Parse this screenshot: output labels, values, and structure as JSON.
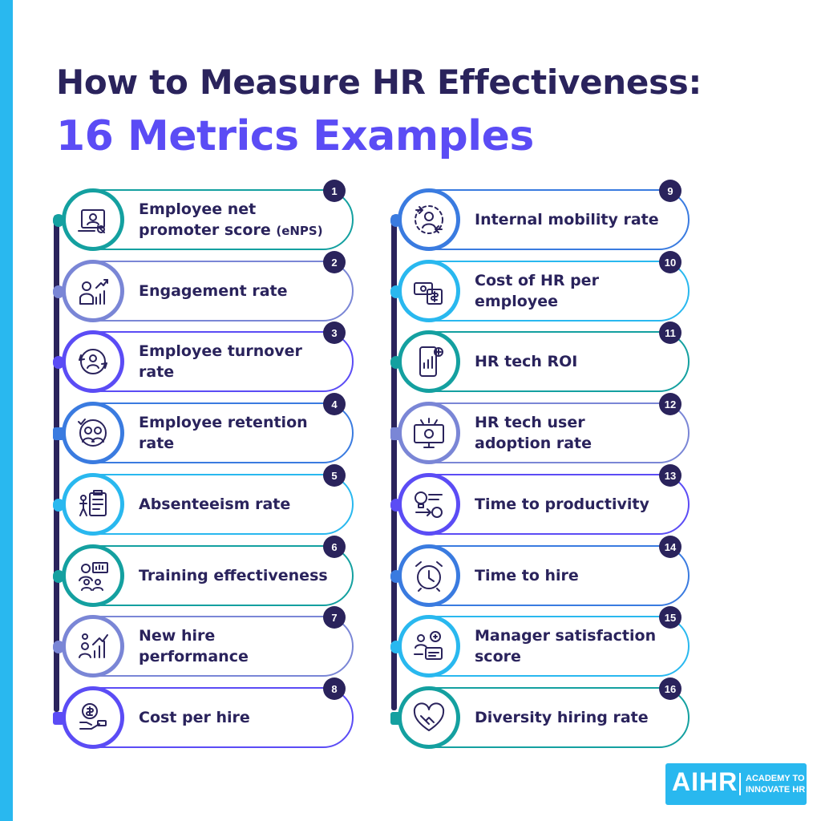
{
  "title": {
    "line1": "How to Measure HR Effectiveness:",
    "line2": "16 Metrics Examples"
  },
  "colors": {
    "navy": "#2a235c",
    "purple": "#5b4cf5",
    "cyan": "#29b8ef",
    "teal": "#14a0a0",
    "lavender": "#7a86d6",
    "blue": "#3a7be0"
  },
  "metrics": [
    {
      "number": "1",
      "label": "Employee net promoter score",
      "suffix": "(eNPS)",
      "icon": "survey-score-icon",
      "color": "#14a0a0"
    },
    {
      "number": "2",
      "label": "Engagement rate",
      "icon": "engagement-growth-icon",
      "color": "#7a86d6"
    },
    {
      "number": "3",
      "label": "Employee turnover rate",
      "icon": "turnover-cycle-icon",
      "color": "#5b4cf5"
    },
    {
      "number": "4",
      "label": "Employee retention rate",
      "icon": "retention-team-icon",
      "color": "#3a7be0"
    },
    {
      "number": "5",
      "label": "Absenteeism rate",
      "icon": "absent-clipboard-icon",
      "color": "#29b8ef"
    },
    {
      "number": "6",
      "label": "Training effectiveness",
      "icon": "training-presentation-icon",
      "color": "#14a0a0"
    },
    {
      "number": "7",
      "label": "New hire performance",
      "icon": "performance-chart-icon",
      "color": "#7a86d6"
    },
    {
      "number": "8",
      "label": "Cost per hire",
      "icon": "hiring-cost-icon",
      "color": "#5b4cf5"
    },
    {
      "number": "9",
      "label": "Internal mobility rate",
      "icon": "mobility-arrows-icon",
      "color": "#3a7be0"
    },
    {
      "number": "10",
      "label": "Cost of HR per employee",
      "icon": "hr-cost-money-icon",
      "color": "#29b8ef"
    },
    {
      "number": "11",
      "label": "HR tech ROI",
      "icon": "tech-roi-phone-icon",
      "color": "#14a0a0"
    },
    {
      "number": "12",
      "label": "HR tech user adoption rate",
      "icon": "tech-adoption-monitor-icon",
      "color": "#7a86d6"
    },
    {
      "number": "13",
      "label": "Time to productivity",
      "icon": "productivity-lightbulb-icon",
      "color": "#5b4cf5"
    },
    {
      "number": "14",
      "label": "Time to hire",
      "icon": "alarm-clock-icon",
      "color": "#3a7be0"
    },
    {
      "number": "15",
      "label": "Manager satisfaction score",
      "icon": "manager-feedback-icon",
      "color": "#29b8ef"
    },
    {
      "number": "16",
      "label": "Diversity hiring rate",
      "icon": "handshake-heart-icon",
      "color": "#14a0a0"
    }
  ],
  "logo": {
    "mark": "AIHR",
    "tagline": "ACADEMY TO\nINNOVATE HR"
  }
}
